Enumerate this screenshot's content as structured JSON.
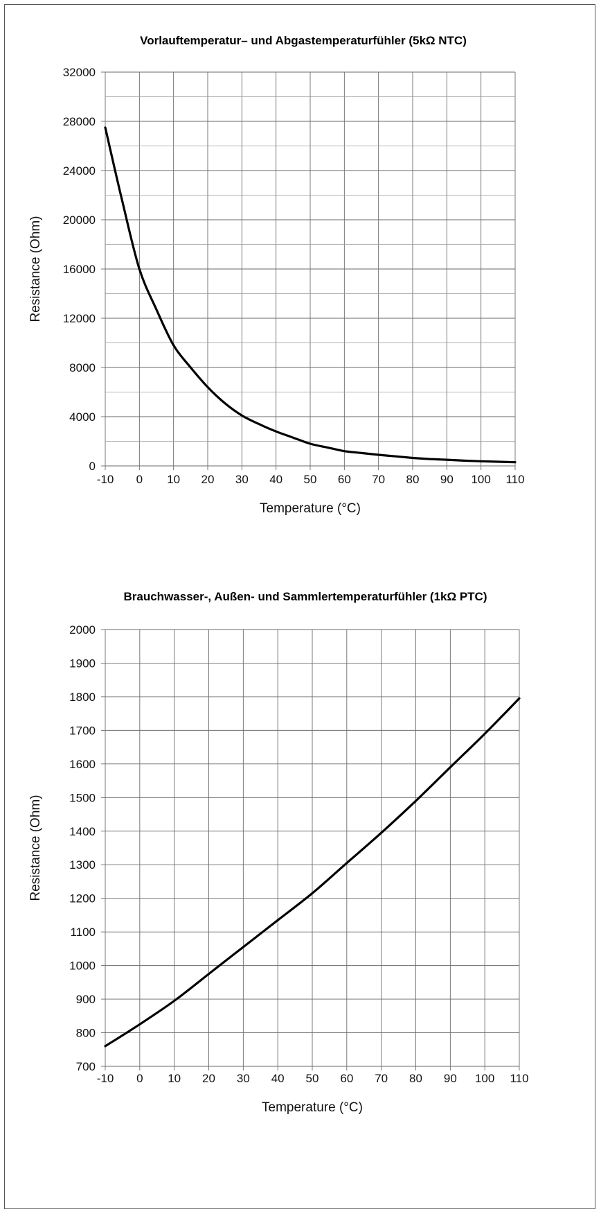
{
  "chart_data": [
    {
      "type": "line",
      "title": "Vorlauftemperatur– und Abgastemperaturfühler (5kΩ NTC)",
      "xlabel": "Temperature (°C)",
      "ylabel": "Resistance (Ohm)",
      "xlim": [
        -10,
        110
      ],
      "ylim": [
        0,
        32000
      ],
      "xticks": [
        -10,
        0,
        10,
        20,
        30,
        40,
        50,
        60,
        70,
        80,
        90,
        100,
        110
      ],
      "yticks": [
        0,
        4000,
        8000,
        12000,
        16000,
        20000,
        24000,
        28000,
        32000
      ],
      "grid": true,
      "color": "#000000",
      "x": [
        -10,
        -5,
        0,
        5,
        10,
        15,
        20,
        25,
        30,
        35,
        40,
        45,
        50,
        55,
        60,
        65,
        70,
        75,
        80,
        85,
        90,
        95,
        100,
        105,
        110
      ],
      "y": [
        27500,
        21500,
        16000,
        12700,
        9800,
        8000,
        6400,
        5100,
        4100,
        3400,
        2800,
        2300,
        1800,
        1500,
        1200,
        1050,
        900,
        780,
        650,
        560,
        500,
        430,
        380,
        340,
        300
      ]
    },
    {
      "type": "line",
      "title": "Brauchwasser-, Außen- und Sammlertemperaturfühler (1kΩ PTC)",
      "xlabel": "Temperature (°C)",
      "ylabel": "Resistance (Ohm)",
      "xlim": [
        -10,
        110
      ],
      "ylim": [
        700,
        2000
      ],
      "xticks": [
        -10,
        0,
        10,
        20,
        30,
        40,
        50,
        60,
        70,
        80,
        90,
        100,
        110
      ],
      "yticks": [
        700,
        800,
        900,
        1000,
        1100,
        1200,
        1300,
        1400,
        1500,
        1600,
        1700,
        1800,
        1900,
        2000
      ],
      "grid": true,
      "color": "#000000",
      "x": [
        -10,
        0,
        10,
        20,
        30,
        40,
        50,
        60,
        70,
        80,
        90,
        100,
        110
      ],
      "y": [
        760,
        825,
        895,
        975,
        1055,
        1135,
        1215,
        1305,
        1395,
        1490,
        1590,
        1690,
        1795
      ]
    }
  ]
}
